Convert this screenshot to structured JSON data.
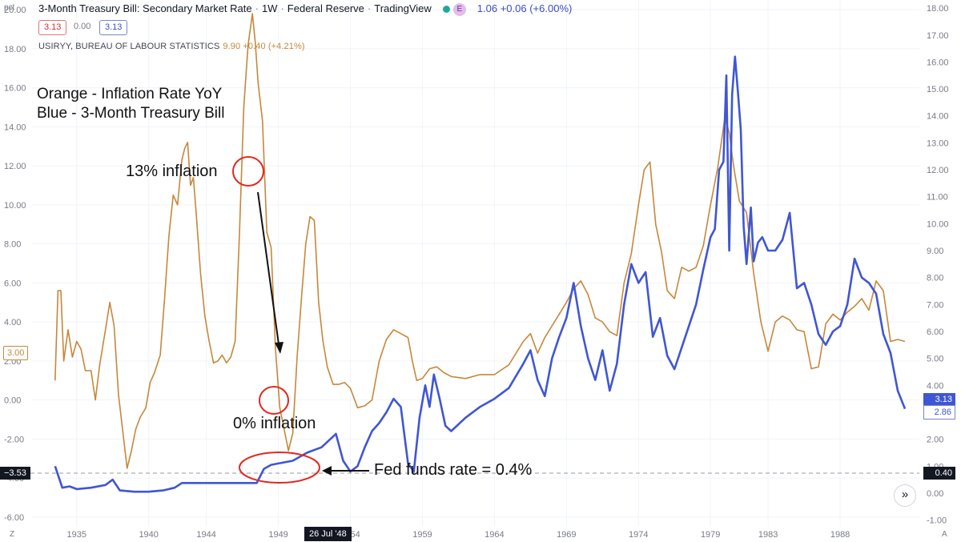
{
  "header": {
    "title": "3-Month Treasury Bill: Secondary Market Rate",
    "interval": "1W",
    "source": "Federal Reserve",
    "platform": "TradingView",
    "e_badge": "E",
    "quote": "1.06 +0.06 (+6.00%)"
  },
  "price_boxes": {
    "sell": "3.13",
    "spread": "0.00",
    "buy": "3.13"
  },
  "overlay": {
    "label": "USIRYY, BUREAU OF LABOUR STATISTICS",
    "values": "9.90 +0.40 (+4.21%)"
  },
  "annotations": {
    "legend_line1": "Orange - Inflation Rate YoY",
    "legend_line2": "Blue - 3-Month Treasury Bill",
    "peak_note": "13% inflation",
    "trough_note": "0% inflation",
    "fed_note": "Fed funds rate = 0.4%"
  },
  "left_axis_unit": "pct",
  "corner_z": "Z",
  "corner_a": "A",
  "expand_icon_glyph": "»",
  "tags": {
    "left_inflation": "3.00",
    "left_crosshair": "−3.53",
    "right_tbill": "3.13",
    "right_secondary": "2.86",
    "right_crosshair": "0.40",
    "x_crosshair": "26 Jul '48"
  },
  "colors": {
    "inflation": "#c7873a",
    "tbill": "#3f56d4",
    "accent_circle": "#e0291f",
    "axis_text": "#787b86"
  },
  "chart_data": {
    "type": "line",
    "x_ticks": [
      "1935",
      "1940",
      "1944",
      "1949",
      "1954",
      "1959",
      "1964",
      "1969",
      "1974",
      "1979",
      "1983",
      "1988"
    ],
    "left_axis": {
      "ticks": [
        "20.00",
        "18.00",
        "16.00",
        "14.00",
        "12.00",
        "10.00",
        "8.00",
        "6.00",
        "4.00",
        "2.00",
        "0.00",
        "-2.00",
        "-4.00",
        "-6.00"
      ],
      "ylim": [
        -6.5,
        20.5
      ]
    },
    "right_axis": {
      "ticks": [
        "18.00",
        "17.00",
        "16.00",
        "15.00",
        "14.00",
        "13.00",
        "12.00",
        "11.00",
        "10.00",
        "9.00",
        "8.00",
        "7.00",
        "6.00",
        "5.00",
        "4.00",
        "3.00",
        "2.00",
        "1.00",
        "0.00",
        "-1.00"
      ],
      "ylim": [
        -1.25,
        18.3
      ]
    },
    "series": [
      {
        "name": "USIRYY, BUREAU OF LABOUR STATISTICS",
        "axis": "left",
        "x": [
          1933.5,
          1933.7,
          1933.9,
          1934.1,
          1934.4,
          1934.7,
          1935.0,
          1935.3,
          1935.6,
          1936.0,
          1936.3,
          1936.6,
          1937.0,
          1937.3,
          1937.6,
          1937.9,
          1938.2,
          1938.5,
          1938.8,
          1939.1,
          1939.4,
          1939.8,
          1940.1,
          1940.4,
          1940.8,
          1941.1,
          1941.4,
          1941.7,
          1942.0,
          1942.3,
          1942.5,
          1942.7,
          1942.9,
          1943.1,
          1943.3,
          1943.6,
          1943.9,
          1944.2,
          1944.5,
          1944.8,
          1945.1,
          1945.4,
          1945.7,
          1946.0,
          1946.3,
          1946.6,
          1946.9,
          1947.2,
          1947.4,
          1947.6,
          1947.9,
          1948.2,
          1948.5,
          1948.8,
          1949.1,
          1949.4,
          1949.7,
          1950.0,
          1950.3,
          1950.6,
          1950.9,
          1951.2,
          1951.5,
          1951.8,
          1952.1,
          1952.4,
          1952.8,
          1953.2,
          1953.6,
          1954.0,
          1954.5,
          1955.0,
          1955.5,
          1956.0,
          1956.5,
          1957.0,
          1957.5,
          1958.0,
          1958.3,
          1958.6,
          1959.0,
          1959.5,
          1960.0,
          1960.5,
          1961.0,
          1962.0,
          1963.0,
          1964.0,
          1965.0,
          1966.0,
          1966.5,
          1967.0,
          1967.5,
          1968.0,
          1968.5,
          1969.0,
          1969.5,
          1970.0,
          1970.5,
          1971.0,
          1971.5,
          1972.0,
          1972.5,
          1973.0,
          1973.5,
          1974.0,
          1974.4,
          1974.8,
          1975.2,
          1975.6,
          1976.0,
          1976.5,
          1977.0,
          1977.5,
          1978.0,
          1978.5,
          1979.0,
          1979.5,
          1980.0,
          1980.3,
          1980.6,
          1981.0,
          1981.5,
          1982.0,
          1982.5,
          1983.0,
          1983.5,
          1984.0,
          1984.5,
          1985.0,
          1985.5,
          1986.0,
          1986.5,
          1987.0,
          1987.5,
          1988.0,
          1988.5,
          1989.0,
          1989.5,
          1990.0,
          1990.5,
          1991.0,
          1991.5,
          1992.0,
          1992.5
        ],
        "y": [
          1.0,
          5.6,
          5.6,
          2.0,
          3.6,
          2.2,
          3.0,
          2.6,
          1.5,
          1.5,
          0.0,
          1.8,
          3.6,
          5.0,
          3.8,
          0.3,
          -1.6,
          -3.5,
          -2.6,
          -1.5,
          -0.9,
          -0.4,
          0.9,
          1.4,
          2.3,
          5.2,
          8.4,
          10.5,
          10.0,
          12.3,
          12.9,
          13.2,
          11.0,
          11.4,
          9.5,
          6.5,
          4.3,
          3.0,
          1.9,
          2.0,
          2.3,
          1.9,
          2.2,
          3.0,
          8.5,
          15.0,
          18.2,
          19.8,
          18.3,
          16.2,
          14.3,
          8.6,
          7.8,
          2.6,
          -0.4,
          -1.5,
          -2.6,
          -1.7,
          2.2,
          5.2,
          8.0,
          9.4,
          9.2,
          5.0,
          3.0,
          1.7,
          0.8,
          0.8,
          0.9,
          0.6,
          -0.4,
          -0.3,
          0.0,
          2.0,
          3.1,
          3.6,
          3.4,
          3.2,
          2.0,
          1.0,
          1.1,
          1.6,
          1.7,
          1.4,
          1.2,
          1.1,
          1.3,
          1.3,
          1.8,
          3.0,
          3.4,
          2.4,
          3.2,
          3.8,
          4.4,
          5.0,
          5.7,
          6.1,
          5.4,
          4.2,
          4.0,
          3.5,
          3.3,
          6.0,
          7.5,
          10.0,
          11.8,
          12.2,
          9.0,
          7.6,
          5.6,
          5.2,
          6.8,
          6.6,
          6.8,
          7.9,
          10.0,
          11.9,
          14.5,
          13.7,
          12.0,
          10.2,
          9.6,
          6.5,
          4.0,
          2.5,
          4.0,
          4.3,
          4.1,
          3.6,
          3.5,
          1.6,
          1.7,
          3.9,
          4.4,
          4.1,
          4.5,
          4.8,
          5.2,
          4.6,
          6.1,
          5.6,
          3.0,
          3.1,
          3.0
        ]
      },
      {
        "name": "3-Month Treasury Bill: Secondary Market Rate",
        "axis": "right",
        "x": [
          1933.5,
          1934.0,
          1934.5,
          1935.0,
          1936.0,
          1937.0,
          1937.5,
          1938.0,
          1939.0,
          1940.0,
          1941.0,
          1941.8,
          1942.3,
          1946.0,
          1947.5,
          1948.0,
          1948.5,
          1949.0,
          1950.0,
          1951.0,
          1952.0,
          1953.0,
          1953.5,
          1954.0,
          1954.5,
          1955.0,
          1955.5,
          1956.0,
          1956.5,
          1957.0,
          1957.5,
          1958.0,
          1958.4,
          1958.8,
          1959.2,
          1959.5,
          1959.8,
          1960.2,
          1960.6,
          1961.0,
          1962.0,
          1963.0,
          1964.0,
          1965.0,
          1966.0,
          1966.5,
          1967.0,
          1967.5,
          1968.0,
          1968.5,
          1969.0,
          1969.5,
          1970.0,
          1970.5,
          1971.0,
          1971.5,
          1972.0,
          1972.5,
          1973.0,
          1973.5,
          1974.0,
          1974.5,
          1975.0,
          1975.5,
          1976.0,
          1976.5,
          1977.0,
          1977.5,
          1978.0,
          1978.5,
          1979.0,
          1979.3,
          1979.6,
          1979.9,
          1980.1,
          1980.3,
          1980.5,
          1980.7,
          1980.9,
          1981.1,
          1981.3,
          1981.5,
          1981.8,
          1982.0,
          1982.3,
          1982.6,
          1983.0,
          1983.5,
          1984.0,
          1984.5,
          1985.0,
          1985.5,
          1986.0,
          1986.5,
          1987.0,
          1987.5,
          1988.0,
          1988.5,
          1989.0,
          1989.5,
          1990.0,
          1990.5,
          1991.0,
          1991.5,
          1992.0,
          1992.5
        ],
        "y": [
          1.0,
          0.2,
          0.25,
          0.15,
          0.2,
          0.3,
          0.5,
          0.1,
          0.05,
          0.05,
          0.1,
          0.2,
          0.375,
          0.375,
          0.375,
          0.9,
          1.05,
          1.1,
          1.2,
          1.5,
          1.7,
          2.2,
          1.2,
          0.8,
          1.0,
          1.7,
          2.3,
          2.6,
          3.0,
          3.5,
          3.2,
          1.1,
          0.8,
          2.8,
          4.0,
          3.2,
          4.4,
          3.5,
          2.5,
          2.3,
          2.8,
          3.2,
          3.5,
          3.9,
          4.8,
          5.3,
          4.2,
          3.6,
          5.0,
          5.8,
          6.5,
          7.8,
          6.2,
          5.0,
          4.2,
          5.3,
          3.8,
          4.8,
          7.0,
          8.5,
          7.8,
          8.2,
          5.8,
          6.5,
          5.1,
          4.6,
          5.4,
          6.2,
          7.0,
          8.3,
          9.5,
          9.8,
          12.0,
          12.3,
          15.5,
          9.0,
          14.8,
          16.2,
          14.9,
          13.5,
          9.9,
          8.5,
          10.6,
          8.6,
          9.3,
          9.5,
          9.0,
          9.0,
          9.4,
          10.4,
          7.6,
          7.8,
          7.0,
          5.9,
          5.5,
          6.0,
          6.2,
          7.0,
          8.7,
          8.0,
          7.8,
          7.4,
          5.9,
          5.2,
          3.8,
          3.13
        ]
      }
    ]
  }
}
